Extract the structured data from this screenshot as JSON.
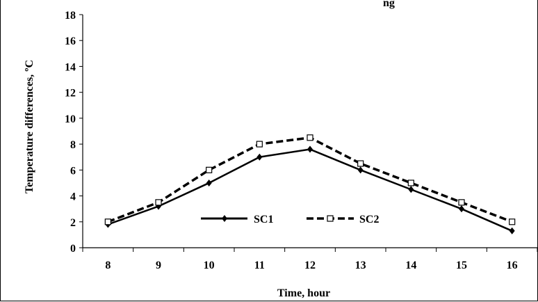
{
  "chart_data": {
    "type": "line",
    "title": "",
    "title_fragment": "ng",
    "xlabel": "Time, hour",
    "ylabel": "Temperature differences, ºC",
    "categories": [
      "8",
      "9",
      "10",
      "11",
      "12",
      "13",
      "14",
      "15",
      "16"
    ],
    "x": [
      8,
      9,
      10,
      11,
      12,
      13,
      14,
      15,
      16
    ],
    "ylim": [
      0,
      18
    ],
    "yticks": [
      "0",
      "2",
      "4",
      "6",
      "8",
      "10",
      "12",
      "14",
      "16",
      "18"
    ],
    "grid": false,
    "legend_position": "center",
    "series": [
      {
        "name": "SC1",
        "line": "solid",
        "marker": "diamond",
        "color": "#000000",
        "values": [
          1.8,
          3.2,
          5.0,
          7.0,
          7.6,
          6.0,
          4.5,
          3.0,
          1.3
        ]
      },
      {
        "name": "SC2",
        "line": "dashed",
        "marker": "open-square",
        "color": "#000000",
        "values": [
          2.0,
          3.5,
          6.0,
          8.0,
          8.5,
          6.5,
          5.0,
          3.5,
          2.0
        ]
      }
    ]
  }
}
